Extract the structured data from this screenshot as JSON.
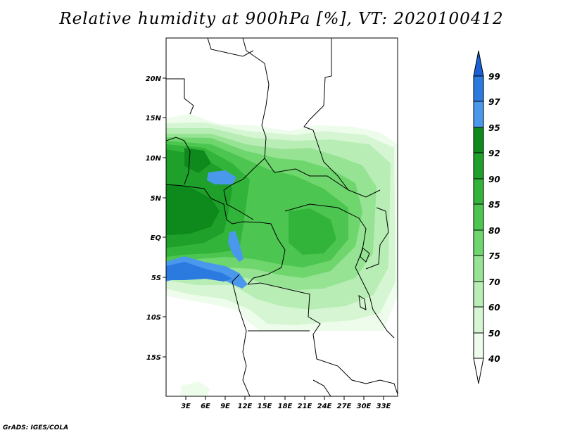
{
  "title": "Relative humidity at 900hPa [%], VT: 2020100412",
  "credit": "GrADS: IGES/COLA",
  "map": {
    "lat_labels": [
      "20N",
      "15N",
      "10N",
      "5N",
      "EQ",
      "5S",
      "10S",
      "15S"
    ],
    "lon_labels": [
      "3E",
      "6E",
      "9E",
      "12E",
      "15E",
      "18E",
      "21E",
      "24E",
      "27E",
      "30E",
      "33E"
    ]
  },
  "colorbar": {
    "levels": [
      "99",
      "97",
      "95",
      "92",
      "90",
      "85",
      "80",
      "75",
      "70",
      "60",
      "50",
      "40"
    ],
    "colors": [
      "#1a5fd6",
      "#2b7ae0",
      "#4a98ec",
      "#0e8a1c",
      "#1ea02a",
      "#32b43a",
      "#4cc650",
      "#6fd66e",
      "#95e393",
      "#b8eeb5",
      "#d6f6d3",
      "#edfceb"
    ]
  }
}
